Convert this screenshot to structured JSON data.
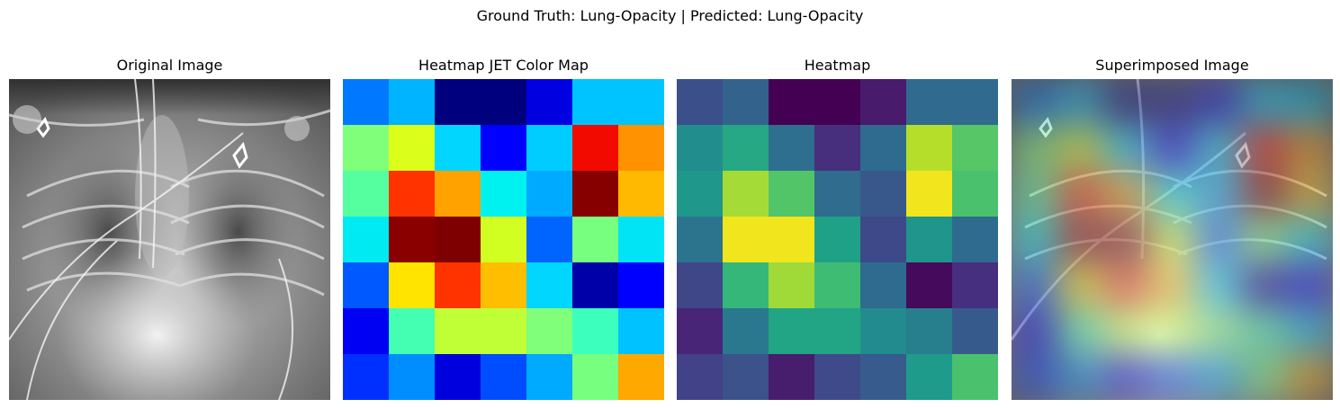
{
  "suptitle": "Ground Truth: Lung-Opacity | Predicted: Lung-Opacity",
  "panels": [
    {
      "title": "Original Image"
    },
    {
      "title": "Heatmap JET Color Map"
    },
    {
      "title": "Heatmap"
    },
    {
      "title": "Superimposed Image"
    }
  ],
  "jet_grid": [
    [
      "#0078ff",
      "#00b4ff",
      "#00007f",
      "#00007f",
      "#0000e0",
      "#00c4ff",
      "#00c4ff"
    ],
    [
      "#7fff7a",
      "#dbff1a",
      "#00d6ff",
      "#0000ff",
      "#00ccff",
      "#f20a00",
      "#ff9200"
    ],
    [
      "#55ff9f",
      "#ff3300",
      "#ffa200",
      "#00f2f0",
      "#00aaff",
      "#870000",
      "#ffba00"
    ],
    [
      "#00eaf2",
      "#8a0000",
      "#7f0000",
      "#d2ff22",
      "#0064ff",
      "#77ff7f",
      "#00e4f6"
    ],
    [
      "#0058ff",
      "#ffe400",
      "#ff3300",
      "#ffbe00",
      "#00d6ff",
      "#0000a8",
      "#0000ff"
    ],
    [
      "#0000f2",
      "#44ffb2",
      "#c0ff36",
      "#c0ff36",
      "#7fff7a",
      "#3cffbe",
      "#00c2ff"
    ],
    [
      "#0030ff",
      "#008eff",
      "#0000df",
      "#004cff",
      "#00aaff",
      "#77ff7f",
      "#ffa800"
    ]
  ],
  "viridis_grid": [
    [
      "#3b508a",
      "#33638d",
      "#440154",
      "#440154",
      "#481b6d",
      "#306a8e",
      "#306a8e"
    ],
    [
      "#218e8d",
      "#25a883",
      "#2e6e8e",
      "#472f7d",
      "#2f6b8e",
      "#b5de2b",
      "#56c667"
    ],
    [
      "#1f978b",
      "#a5db36",
      "#52c569",
      "#2f6c8e",
      "#38588c",
      "#f1e51d",
      "#4ac16d"
    ],
    [
      "#2c738e",
      "#f1e51d",
      "#f1e51d",
      "#1fa187",
      "#3e4989",
      "#1f958b",
      "#2f6b8e"
    ],
    [
      "#3f4788",
      "#35b779",
      "#a0da39",
      "#3fbc73",
      "#2f6b8e",
      "#450a5c",
      "#462f7f"
    ],
    [
      "#482576",
      "#2a788e",
      "#21a585",
      "#21a585",
      "#228b8d",
      "#277f8e",
      "#375a8c"
    ],
    [
      "#414287",
      "#3b528b",
      "#471d6d",
      "#3e4a89",
      "#375b8d",
      "#1e9b8a",
      "#4ac16d"
    ]
  ]
}
